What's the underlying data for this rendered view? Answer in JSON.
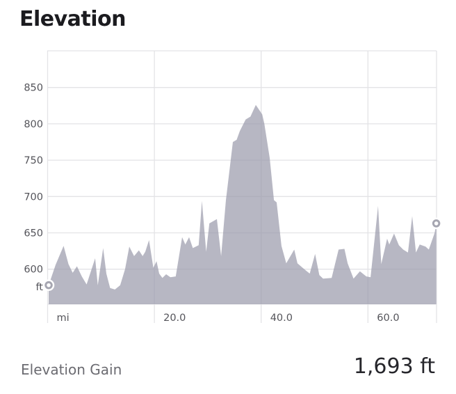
{
  "title": "Elevation",
  "footer": {
    "label": "Elevation Gain",
    "value": "1,693 ft"
  },
  "colors": {
    "title_text": "#1b1b1f",
    "axis_text": "#54545a",
    "grid": "#e3e3e6",
    "area_fill": "rgba(153,153,169,0.70)",
    "marker_ring": "#a6a6b1",
    "marker_hole": "#ffffff",
    "footer_label": "#6b6b71",
    "footer_value": "#26262b"
  },
  "chart_data": {
    "type": "area",
    "title": "Elevation",
    "x_unit": "mi",
    "y_unit": "ft",
    "xlim": [
      0,
      73
    ],
    "ylim": [
      552,
      900
    ],
    "grid": true,
    "x_ticks": [
      {
        "value": 0,
        "label": "mi"
      },
      {
        "value": 20,
        "label": "20.0"
      },
      {
        "value": 40,
        "label": "40.0"
      },
      {
        "value": 60,
        "label": "60.0"
      }
    ],
    "y_ticks": [
      {
        "value": 850,
        "label": "850"
      },
      {
        "value": 800,
        "label": "800"
      },
      {
        "value": 750,
        "label": "750"
      },
      {
        "value": 700,
        "label": "700"
      },
      {
        "value": 650,
        "label": "650"
      },
      {
        "value": 600,
        "label": "600"
      }
    ],
    "y_unit_label": "ft",
    "markers": {
      "start": [
        0.2,
        578
      ],
      "end": [
        72.8,
        663
      ]
    },
    "points": [
      [
        0.2,
        578
      ],
      [
        1.5,
        606
      ],
      [
        3.0,
        632
      ],
      [
        3.9,
        607
      ],
      [
        4.7,
        595
      ],
      [
        5.5,
        604
      ],
      [
        6.4,
        590
      ],
      [
        7.3,
        579
      ],
      [
        8.9,
        615
      ],
      [
        9.4,
        578
      ],
      [
        10.4,
        629
      ],
      [
        11.0,
        594
      ],
      [
        11.7,
        574
      ],
      [
        12.6,
        572
      ],
      [
        13.6,
        578
      ],
      [
        14.5,
        600
      ],
      [
        15.3,
        631
      ],
      [
        16.2,
        618
      ],
      [
        17.1,
        626
      ],
      [
        17.8,
        618
      ],
      [
        18.3,
        624
      ],
      [
        19.0,
        640
      ],
      [
        19.8,
        602
      ],
      [
        20.4,
        611
      ],
      [
        20.9,
        594
      ],
      [
        21.5,
        588
      ],
      [
        22.2,
        593
      ],
      [
        23.0,
        589
      ],
      [
        24.0,
        590
      ],
      [
        25.2,
        644
      ],
      [
        25.8,
        634
      ],
      [
        26.5,
        644
      ],
      [
        27.2,
        629
      ],
      [
        28.3,
        633
      ],
      [
        28.9,
        694
      ],
      [
        29.7,
        624
      ],
      [
        30.3,
        663
      ],
      [
        31.7,
        669
      ],
      [
        32.5,
        618
      ],
      [
        33.4,
        695
      ],
      [
        34.7,
        775
      ],
      [
        35.4,
        778
      ],
      [
        36.0,
        790
      ],
      [
        37.1,
        806
      ],
      [
        38.0,
        810
      ],
      [
        39.0,
        826
      ],
      [
        40.2,
        813
      ],
      [
        40.6,
        800
      ],
      [
        41.6,
        753
      ],
      [
        42.4,
        695
      ],
      [
        42.9,
        692
      ],
      [
        43.8,
        632
      ],
      [
        44.7,
        608
      ],
      [
        46.2,
        627
      ],
      [
        46.8,
        608
      ],
      [
        48.4,
        598
      ],
      [
        49.1,
        594
      ],
      [
        50.1,
        621
      ],
      [
        50.9,
        592
      ],
      [
        51.6,
        587
      ],
      [
        53.2,
        588
      ],
      [
        54.5,
        627
      ],
      [
        55.6,
        628
      ],
      [
        56.2,
        608
      ],
      [
        57.3,
        587
      ],
      [
        58.5,
        597
      ],
      [
        59.7,
        590
      ],
      [
        60.5,
        589
      ],
      [
        61.9,
        687
      ],
      [
        62.5,
        607
      ],
      [
        63.6,
        642
      ],
      [
        64.0,
        634
      ],
      [
        64.9,
        649
      ],
      [
        65.8,
        633
      ],
      [
        66.6,
        627
      ],
      [
        67.5,
        623
      ],
      [
        68.3,
        673
      ],
      [
        69.0,
        623
      ],
      [
        69.7,
        634
      ],
      [
        70.8,
        631
      ],
      [
        71.4,
        627
      ],
      [
        72.5,
        650
      ],
      [
        72.8,
        663
      ]
    ]
  }
}
